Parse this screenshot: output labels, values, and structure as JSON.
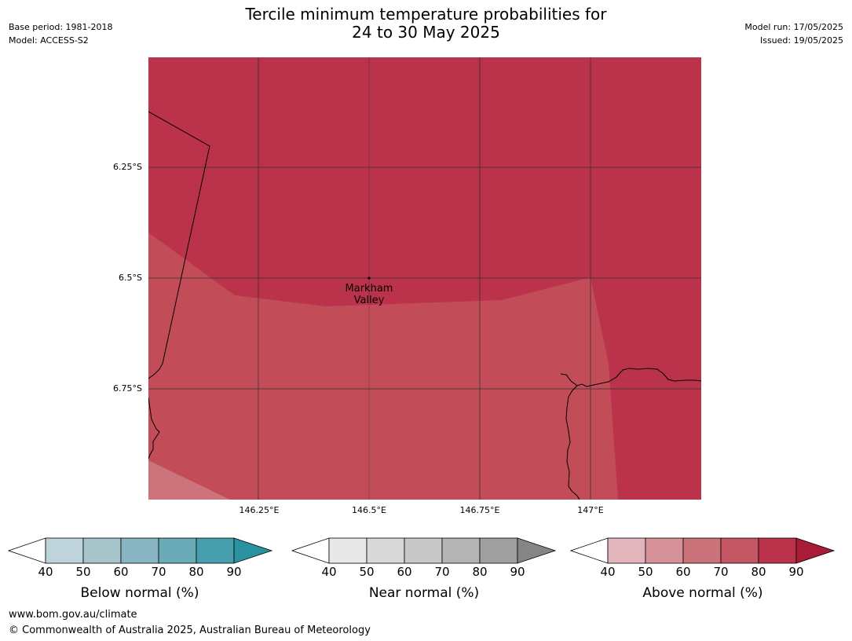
{
  "header": {
    "title_line1": "Tercile minimum temperature probabilities for",
    "title_line2": "24 to 30 May 2025",
    "base_period": "Base period: 1981-2018",
    "model": "Model: ACCESS-S2",
    "model_run": "Model run: 17/05/2025",
    "issued": "Issued: 19/05/2025"
  },
  "map": {
    "lat_labels": [
      "6.25°S",
      "6.5°S",
      "6.75°S"
    ],
    "lon_labels": [
      "146.25°E",
      "146.5°E",
      "146.75°E",
      "147°E"
    ],
    "place": {
      "name_line1": "Markham",
      "name_line2": "Valley",
      "lon": 146.5,
      "lat": -6.5
    },
    "colors": {
      "above_80_90": "#bb334a",
      "above_70_80": "#c24c58",
      "above_60_70": "#cc737b",
      "graticule": "#333333",
      "coastline": "#000000"
    }
  },
  "colorbars": [
    {
      "key": "below",
      "label": "Below normal (%)",
      "ticks": [
        "40",
        "50",
        "60",
        "70",
        "80",
        "90"
      ],
      "colors": [
        "#ffffff",
        "#bfd4da",
        "#a6c4ca",
        "#88b5c1",
        "#6aabb8",
        "#479fad",
        "#2a91a1"
      ]
    },
    {
      "key": "near",
      "label": "Near normal (%)",
      "ticks": [
        "40",
        "50",
        "60",
        "70",
        "80",
        "90"
      ],
      "colors": [
        "#ffffff",
        "#e8e8e8",
        "#d9d9d9",
        "#c8c8c8",
        "#b4b4b4",
        "#9f9f9f",
        "#858585"
      ]
    },
    {
      "key": "above",
      "label": "Above normal (%)",
      "ticks": [
        "40",
        "50",
        "60",
        "70",
        "80",
        "90"
      ],
      "colors": [
        "#ffffff",
        "#e1b5bb",
        "#d69299",
        "#cb737b",
        "#c45562",
        "#bb334a",
        "#a81c38"
      ]
    }
  ],
  "footer": {
    "url": "www.bom.gov.au/climate",
    "copyright": "© Commonwealth of Australia 2025, Australian Bureau of Meteorology"
  }
}
